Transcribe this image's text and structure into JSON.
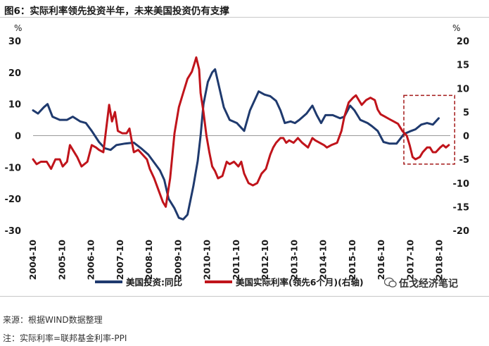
{
  "title": "图6：实际利率领先投资半年，未来美国投资仍有支撑",
  "source": "来源：根据WIND数据整理",
  "note": "注：实际利率=联邦基金利率-PPI",
  "watermark": "伍戈经济笔记",
  "colors": {
    "navy": "#1f3a6e",
    "red": "#c0141b",
    "box": "#a31919",
    "zero": "#999999"
  },
  "chart_data": {
    "type": "line",
    "left_axis": {
      "unit": "%",
      "ylim": [
        -30,
        30
      ],
      "ticks": [
        "30",
        "20",
        "10",
        "0",
        "-10",
        "-20",
        "-30"
      ]
    },
    "right_axis": {
      "unit": "%",
      "ylim": [
        -20,
        20
      ],
      "ticks": [
        "20",
        "15",
        "10",
        "5",
        "0",
        "-5",
        "-10",
        "-15",
        "-20"
      ]
    },
    "x_ticks": [
      "2004-10",
      "2005-10",
      "2006-10",
      "2007-10",
      "2008-10",
      "2009-10",
      "2010-10",
      "2011-10",
      "2012-10",
      "2013-10",
      "2014-10",
      "2015-10",
      "2016-10",
      "2017-10",
      "2018-10"
    ],
    "series": [
      {
        "name": "美国投资:同比",
        "axis": "left",
        "color": "#1f3a6e",
        "points": [
          [
            2004.83,
            8.0
          ],
          [
            2005.0,
            7.0
          ],
          [
            2005.2,
            9.0
          ],
          [
            2005.33,
            10.0
          ],
          [
            2005.5,
            6.0
          ],
          [
            2005.75,
            5.0
          ],
          [
            2006.0,
            5.0
          ],
          [
            2006.2,
            6.0
          ],
          [
            2006.45,
            4.5
          ],
          [
            2006.65,
            4.0
          ],
          [
            2006.85,
            1.5
          ],
          [
            2007.1,
            -2.0
          ],
          [
            2007.3,
            -4.0
          ],
          [
            2007.5,
            -4.5
          ],
          [
            2007.7,
            -3.0
          ],
          [
            2008.0,
            -2.5
          ],
          [
            2008.3,
            -2.2
          ],
          [
            2008.55,
            -4.0
          ],
          [
            2008.8,
            -6.0
          ],
          [
            2009.0,
            -8.5
          ],
          [
            2009.2,
            -11.0
          ],
          [
            2009.35,
            -14.0
          ],
          [
            2009.5,
            -20.0
          ],
          [
            2009.7,
            -23.0
          ],
          [
            2009.85,
            -26.0
          ],
          [
            2010.0,
            -26.5
          ],
          [
            2010.15,
            -25.0
          ],
          [
            2010.35,
            -16.0
          ],
          [
            2010.5,
            -8.0
          ],
          [
            2010.6,
            0.0
          ],
          [
            2010.7,
            10.0
          ],
          [
            2010.85,
            17.0
          ],
          [
            2011.0,
            20.0
          ],
          [
            2011.1,
            21.0
          ],
          [
            2011.25,
            15.0
          ],
          [
            2011.4,
            9.0
          ],
          [
            2011.6,
            5.0
          ],
          [
            2011.85,
            4.0
          ],
          [
            2012.0,
            2.5
          ],
          [
            2012.1,
            1.5
          ],
          [
            2012.3,
            8.0
          ],
          [
            2012.5,
            12.0
          ],
          [
            2012.6,
            14.0
          ],
          [
            2012.8,
            13.0
          ],
          [
            2013.0,
            12.5
          ],
          [
            2013.2,
            11.0
          ],
          [
            2013.35,
            8.0
          ],
          [
            2013.5,
            4.0
          ],
          [
            2013.7,
            4.5
          ],
          [
            2013.85,
            4.0
          ],
          [
            2014.0,
            5.0
          ],
          [
            2014.25,
            7.0
          ],
          [
            2014.45,
            9.5
          ],
          [
            2014.6,
            6.5
          ],
          [
            2014.75,
            4.0
          ],
          [
            2014.9,
            6.5
          ],
          [
            2015.15,
            6.5
          ],
          [
            2015.4,
            5.5
          ],
          [
            2015.55,
            6.0
          ],
          [
            2015.75,
            9.5
          ],
          [
            2015.9,
            8.0
          ],
          [
            2016.1,
            5.0
          ],
          [
            2016.35,
            4.0
          ],
          [
            2016.5,
            3.0
          ],
          [
            2016.7,
            1.5
          ],
          [
            2016.9,
            -2.0
          ],
          [
            2017.1,
            -2.5
          ],
          [
            2017.35,
            -2.5
          ],
          [
            2017.6,
            0.5
          ],
          [
            2017.85,
            1.5
          ],
          [
            2018.0,
            2.0
          ],
          [
            2018.2,
            3.5
          ],
          [
            2018.4,
            4.0
          ],
          [
            2018.6,
            3.5
          ],
          [
            2018.8,
            5.5
          ]
        ]
      },
      {
        "name": "美国实际利率(领先6个月)(右轴)",
        "axis": "right",
        "color": "#c0141b",
        "points": [
          [
            2004.83,
            -5.0
          ],
          [
            2004.95,
            -6.0
          ],
          [
            2005.1,
            -5.5
          ],
          [
            2005.3,
            -5.5
          ],
          [
            2005.45,
            -7.0
          ],
          [
            2005.6,
            -5.0
          ],
          [
            2005.75,
            -5.0
          ],
          [
            2005.85,
            -6.5
          ],
          [
            2006.0,
            -5.5
          ],
          [
            2006.1,
            -2.0
          ],
          [
            2006.2,
            -3.0
          ],
          [
            2006.35,
            -4.5
          ],
          [
            2006.5,
            -6.5
          ],
          [
            2006.7,
            -5.5
          ],
          [
            2006.85,
            -2.0
          ],
          [
            2007.0,
            -2.5
          ],
          [
            2007.1,
            -3.0
          ],
          [
            2007.25,
            -3.5
          ],
          [
            2007.45,
            6.5
          ],
          [
            2007.55,
            3.0
          ],
          [
            2007.65,
            5.0
          ],
          [
            2007.75,
            1.0
          ],
          [
            2007.9,
            0.5
          ],
          [
            2008.05,
            0.5
          ],
          [
            2008.15,
            1.5
          ],
          [
            2008.3,
            -3.5
          ],
          [
            2008.45,
            -3.0
          ],
          [
            2008.6,
            -4.0
          ],
          [
            2008.75,
            -5.0
          ],
          [
            2008.85,
            -7.0
          ],
          [
            2009.0,
            -9.0
          ],
          [
            2009.15,
            -11.5
          ],
          [
            2009.3,
            -14.0
          ],
          [
            2009.4,
            -15.0
          ],
          [
            2009.55,
            -9.0
          ],
          [
            2009.7,
            0.5
          ],
          [
            2009.85,
            6.0
          ],
          [
            2010.0,
            9.0
          ],
          [
            2010.15,
            12.0
          ],
          [
            2010.3,
            13.5
          ],
          [
            2010.4,
            15.5
          ],
          [
            2010.45,
            16.5
          ],
          [
            2010.55,
            14.0
          ],
          [
            2010.6,
            9.0
          ],
          [
            2010.7,
            5.0
          ],
          [
            2010.8,
            0.0
          ],
          [
            2010.9,
            -3.5
          ],
          [
            2011.0,
            -6.5
          ],
          [
            2011.1,
            -7.5
          ],
          [
            2011.2,
            -9.0
          ],
          [
            2011.35,
            -8.5
          ],
          [
            2011.5,
            -5.5
          ],
          [
            2011.6,
            -6.0
          ],
          [
            2011.75,
            -5.5
          ],
          [
            2011.9,
            -6.5
          ],
          [
            2012.0,
            -5.5
          ],
          [
            2012.1,
            -8.0
          ],
          [
            2012.25,
            -10.0
          ],
          [
            2012.4,
            -10.5
          ],
          [
            2012.55,
            -10.0
          ],
          [
            2012.7,
            -8.0
          ],
          [
            2012.85,
            -7.0
          ],
          [
            2013.0,
            -4.0
          ],
          [
            2013.1,
            -2.5
          ],
          [
            2013.2,
            -1.5
          ],
          [
            2013.35,
            -0.5
          ],
          [
            2013.45,
            -0.5
          ],
          [
            2013.55,
            -1.5
          ],
          [
            2013.65,
            -1.0
          ],
          [
            2013.8,
            -1.5
          ],
          [
            2013.95,
            -0.5
          ],
          [
            2014.1,
            -1.5
          ],
          [
            2014.3,
            -2.5
          ],
          [
            2014.45,
            -0.5
          ],
          [
            2014.55,
            -1.0
          ],
          [
            2014.7,
            -1.5
          ],
          [
            2014.85,
            -2.0
          ],
          [
            2014.95,
            -2.5
          ],
          [
            2015.1,
            -2.0
          ],
          [
            2015.3,
            -1.5
          ],
          [
            2015.45,
            1.0
          ],
          [
            2015.55,
            4.0
          ],
          [
            2015.7,
            7.0
          ],
          [
            2015.85,
            8.0
          ],
          [
            2015.95,
            8.5
          ],
          [
            2016.05,
            7.5
          ],
          [
            2016.15,
            6.5
          ],
          [
            2016.3,
            7.5
          ],
          [
            2016.45,
            8.0
          ],
          [
            2016.6,
            7.5
          ],
          [
            2016.7,
            5.5
          ],
          [
            2016.8,
            4.5
          ],
          [
            2016.95,
            4.0
          ],
          [
            2017.1,
            3.5
          ],
          [
            2017.25,
            3.0
          ],
          [
            2017.4,
            2.5
          ],
          [
            2017.55,
            1.0
          ],
          [
            2017.7,
            0.0
          ],
          [
            2017.8,
            -2.0
          ],
          [
            2017.9,
            -4.5
          ],
          [
            2018.0,
            -5.0
          ],
          [
            2018.15,
            -4.5
          ],
          [
            2018.25,
            -3.5
          ],
          [
            2018.4,
            -2.5
          ],
          [
            2018.5,
            -2.5
          ],
          [
            2018.6,
            -3.5
          ],
          [
            2018.7,
            -3.5
          ],
          [
            2018.85,
            -2.5
          ],
          [
            2018.95,
            -2.0
          ],
          [
            2019.05,
            -2.5
          ],
          [
            2019.15,
            -2.0
          ]
        ]
      }
    ],
    "highlight": {
      "x_range": [
        2017.6,
        2019.35
      ],
      "y_range_right": [
        -6.0,
        8.5
      ]
    },
    "legend_position": "bottom"
  }
}
